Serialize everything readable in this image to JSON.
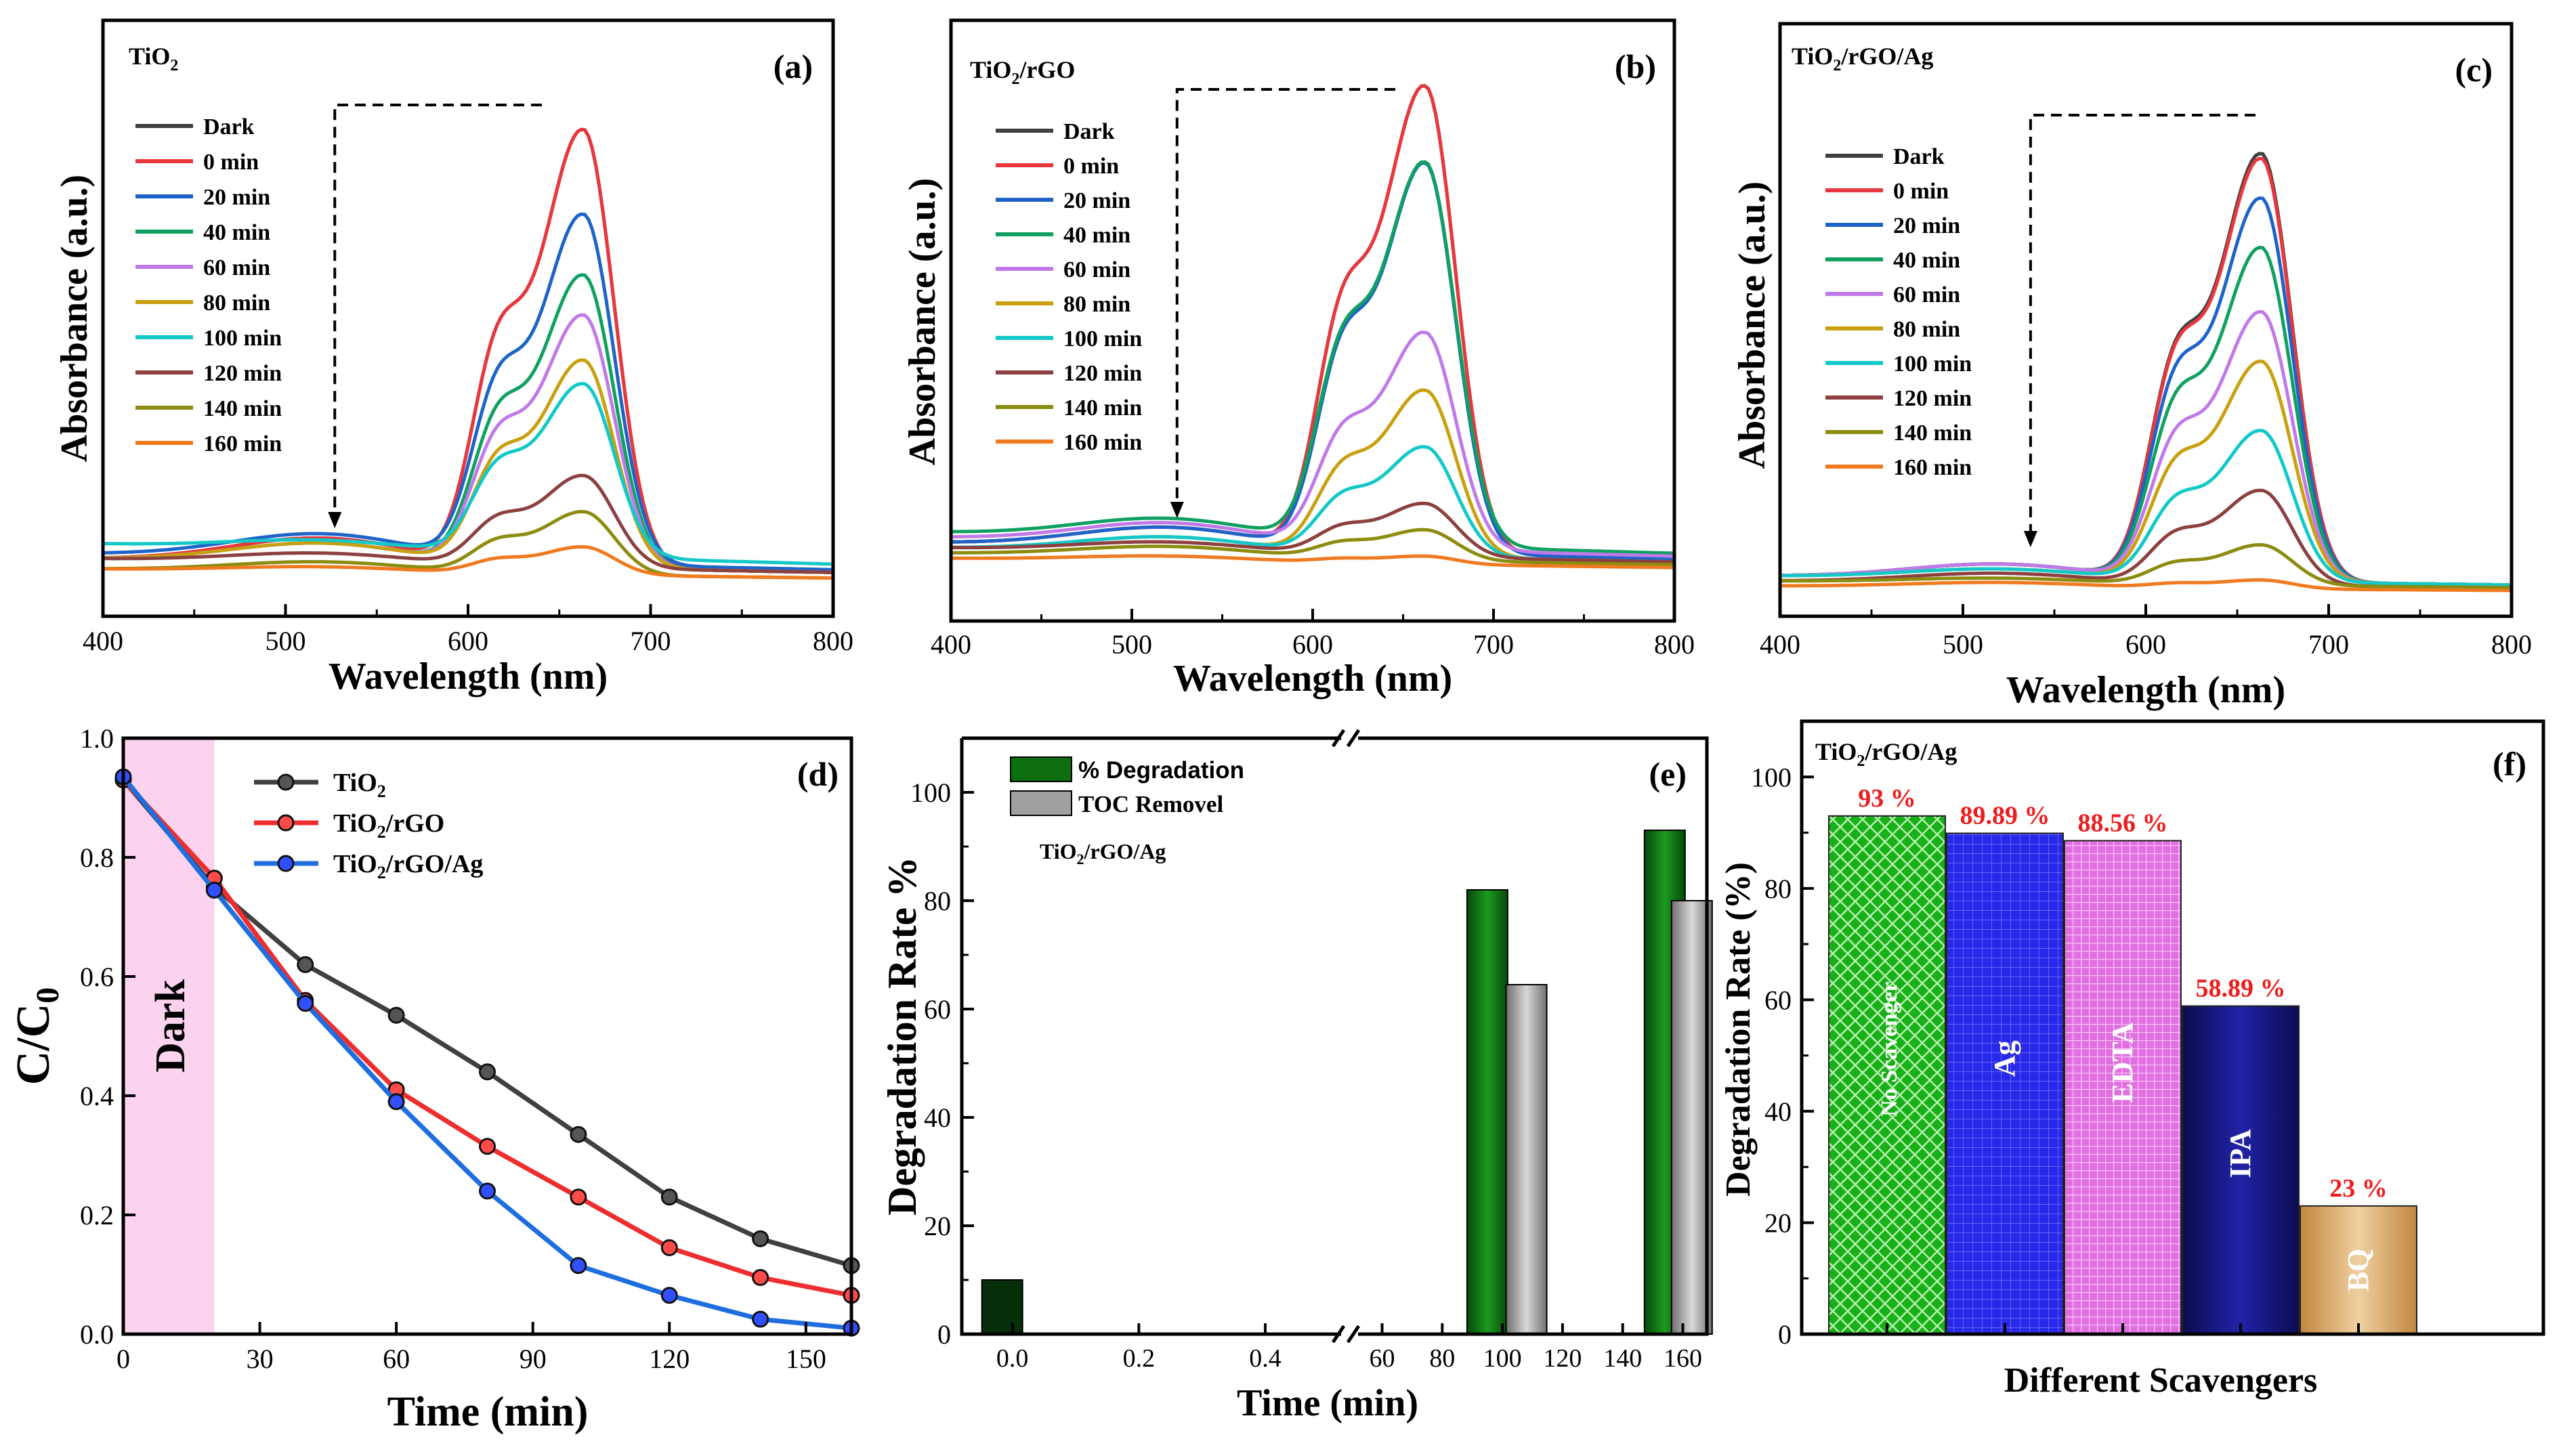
{
  "chart_data": [
    {
      "id": "a",
      "type": "line",
      "panel_label": "(a)",
      "title": "TiO2",
      "title_main": "TiO",
      "title_sub": "2",
      "title_rest": "",
      "xlabel": "Wavelength (nm)",
      "ylabel": "Absorbance (a.u.)",
      "xlim": [
        400,
        800
      ],
      "ylim": [
        0,
        1.0
      ],
      "xticks": [
        "400",
        "500",
        "600",
        "700",
        "800"
      ],
      "peak_x": 663,
      "shoulder_x": 615,
      "shoulder_ratio": 0.72,
      "arrow_x": 527,
      "series": [
        {
          "name": "Dark",
          "color": "#404040",
          "peak": 0.91,
          "base": 0.06,
          "hump": 0.05
        },
        {
          "name": "0 min",
          "color": "#e8373e",
          "peak": 0.91,
          "base": 0.06,
          "hump": 0.05
        },
        {
          "name": "20 min",
          "color": "#1e64c8",
          "peak": 0.74,
          "base": 0.07,
          "hump": 0.05
        },
        {
          "name": "40 min",
          "color": "#10a060",
          "peak": 0.62,
          "base": 0.06,
          "hump": 0.04
        },
        {
          "name": "60 min",
          "color": "#c07ae8",
          "peak": 0.54,
          "base": 0.06,
          "hump": 0.04
        },
        {
          "name": "80 min",
          "color": "#c8a010",
          "peak": 0.45,
          "base": 0.06,
          "hump": 0.04
        },
        {
          "name": "100 min",
          "color": "#14c8c8",
          "peak": 0.4,
          "base": 0.09,
          "hump": 0.02
        },
        {
          "name": "120 min",
          "color": "#8c4040",
          "peak": 0.22,
          "base": 0.06,
          "hump": 0.02
        },
        {
          "name": "140 min",
          "color": "#8c8c10",
          "peak": 0.15,
          "base": 0.04,
          "hump": 0.02
        },
        {
          "name": "160 min",
          "color": "#f07a20",
          "peak": 0.08,
          "base": 0.04,
          "hump": 0.01
        }
      ]
    },
    {
      "id": "b",
      "type": "line",
      "panel_label": "(b)",
      "title": "TiO2/rGO",
      "title_main": "TiO",
      "title_sub": "2",
      "title_rest": "/rGO",
      "xlabel": "Wavelength (nm)",
      "ylabel": "Absorbance (a.u.)",
      "xlim": [
        400,
        800
      ],
      "ylim": [
        0,
        1.0
      ],
      "xticks": [
        "400",
        "500",
        "600",
        "700",
        "800"
      ],
      "peak_x": 662,
      "shoulder_x": 615,
      "shoulder_ratio": 0.72,
      "arrow_x": 525,
      "series": [
        {
          "name": "Dark",
          "color": "#404040",
          "peak": 0.95,
          "base": 0.07,
          "hump": 0.04
        },
        {
          "name": "0 min",
          "color": "#e8373e",
          "peak": 0.95,
          "base": 0.07,
          "hump": 0.04
        },
        {
          "name": "20 min",
          "color": "#1e64c8",
          "peak": 0.8,
          "base": 0.07,
          "hump": 0.04
        },
        {
          "name": "40 min",
          "color": "#10a060",
          "peak": 0.8,
          "base": 0.09,
          "hump": 0.04
        },
        {
          "name": "60 min",
          "color": "#c07ae8",
          "peak": 0.47,
          "base": 0.08,
          "hump": 0.04
        },
        {
          "name": "80 min",
          "color": "#c8a010",
          "peak": 0.36,
          "base": 0.06,
          "hump": 0.03
        },
        {
          "name": "100 min",
          "color": "#14c8c8",
          "peak": 0.25,
          "base": 0.06,
          "hump": 0.03
        },
        {
          "name": "120 min",
          "color": "#8c4040",
          "peak": 0.14,
          "base": 0.06,
          "hump": 0.02
        },
        {
          "name": "140 min",
          "color": "#8c8c10",
          "peak": 0.09,
          "base": 0.05,
          "hump": 0.02
        },
        {
          "name": "160 min",
          "color": "#f07a20",
          "peak": 0.04,
          "base": 0.04,
          "hump": 0.01
        }
      ]
    },
    {
      "id": "c",
      "type": "line",
      "panel_label": "(c)",
      "title": "TiO2/rGO/Ag",
      "title_main": "TiO",
      "title_sub": "2",
      "title_rest": "/rGO/Ag",
      "xlabel": "Wavelength (nm)",
      "ylabel": "Absorbance (a.u.)",
      "xlim": [
        400,
        800
      ],
      "ylim": [
        0,
        1.0
      ],
      "xticks": [
        "400",
        "500",
        "600",
        "700",
        "800"
      ],
      "peak_x": 663,
      "shoulder_x": 615,
      "shoulder_ratio": 0.74,
      "arrow_x": 537,
      "series": [
        {
          "name": "Dark",
          "color": "#404040",
          "peak": 0.89,
          "base": 0.04,
          "hump": 0.03
        },
        {
          "name": "0 min",
          "color": "#e8373e",
          "peak": 0.88,
          "base": 0.04,
          "hump": 0.03
        },
        {
          "name": "20 min",
          "color": "#1e64c8",
          "peak": 0.8,
          "base": 0.04,
          "hump": 0.03
        },
        {
          "name": "40 min",
          "color": "#10a060",
          "peak": 0.7,
          "base": 0.04,
          "hump": 0.03
        },
        {
          "name": "60 min",
          "color": "#c07ae8",
          "peak": 0.57,
          "base": 0.04,
          "hump": 0.03
        },
        {
          "name": "80 min",
          "color": "#c8a010",
          "peak": 0.47,
          "base": 0.04,
          "hump": 0.02
        },
        {
          "name": "100 min",
          "color": "#14c8c8",
          "peak": 0.33,
          "base": 0.04,
          "hump": 0.02
        },
        {
          "name": "120 min",
          "color": "#8c4040",
          "peak": 0.21,
          "base": 0.03,
          "hump": 0.02
        },
        {
          "name": "140 min",
          "color": "#8c8c10",
          "peak": 0.1,
          "base": 0.03,
          "hump": 0.01
        },
        {
          "name": "160 min",
          "color": "#f07a20",
          "peak": 0.03,
          "base": 0.02,
          "hump": 0.01
        }
      ]
    },
    {
      "id": "d",
      "type": "line",
      "panel_label": "(d)",
      "xlabel": "Time (min)",
      "ylabel": "C/C0",
      "ylabel_main": "C/C",
      "ylabel_sub": "0",
      "xlim": [
        0,
        160
      ],
      "ylim": [
        0,
        1.0
      ],
      "xticks": [
        "0",
        "30",
        "60",
        "90",
        "120",
        "150"
      ],
      "yticks": [
        "0.0",
        "0.2",
        "0.4",
        "0.6",
        "0.8",
        "1.0"
      ],
      "dark_region": [
        0,
        20
      ],
      "dark_label": "Dark",
      "dark_color": "#fbd3ee",
      "x": [
        0,
        20,
        40,
        60,
        80,
        100,
        120,
        140,
        160
      ],
      "series": [
        {
          "name": "TiO2",
          "name_main": "TiO",
          "name_sub": "2",
          "name_rest": "",
          "color": "#404040",
          "marker_fill": "#555555",
          "values": [
            0.93,
            0.75,
            0.62,
            0.535,
            0.44,
            0.335,
            0.23,
            0.16,
            0.115
          ]
        },
        {
          "name": "TiO2/rGO",
          "name_main": "TiO",
          "name_sub": "2",
          "name_rest": "/rGO",
          "color": "#ee2e2e",
          "marker_fill": "#ff4a4a",
          "values": [
            0.93,
            0.765,
            0.56,
            0.41,
            0.315,
            0.23,
            0.145,
            0.095,
            0.065
          ]
        },
        {
          "name": "TiO2/rGO/Ag",
          "name_main": "TiO",
          "name_sub": "2",
          "name_rest": "/rGO/Ag",
          "color": "#1e6ee0",
          "marker_fill": "#3050ff",
          "values": [
            0.935,
            0.745,
            0.555,
            0.39,
            0.24,
            0.115,
            0.065,
            0.025,
            0.01
          ]
        }
      ]
    },
    {
      "id": "e",
      "type": "bar",
      "panel_label": "(e)",
      "xlabel": "Time (min)",
      "ylabel": "Degradation Rate %",
      "ylim": [
        0,
        110
      ],
      "yticks": [
        "0",
        "20",
        "40",
        "60",
        "80",
        "100"
      ],
      "xticks_left": [
        "0.0",
        "0.2",
        "0.4"
      ],
      "xticks_right": [
        "60",
        "80",
        "100",
        "120",
        "140",
        "160"
      ],
      "legend": [
        "% Degradation",
        "TOC Removel"
      ],
      "annotation": "TiO2/rGO/Ag",
      "annotation_main": "TiO",
      "annotation_sub": "2",
      "annotation_rest": "/rGO/Ag",
      "colors": {
        "degradation": "#0d6e10",
        "toc": "#a0a0a0"
      },
      "series": [
        {
          "name": "% Degradation",
          "points": [
            {
              "x": 0.0,
              "value": 10
            },
            {
              "x": 95,
              "value": 82
            },
            {
              "x": 154,
              "value": 93
            }
          ]
        },
        {
          "name": "TOC Removel",
          "points": [
            {
              "x": 108,
              "value": 64.5
            },
            {
              "x": 163,
              "value": 80
            }
          ]
        }
      ]
    },
    {
      "id": "f",
      "type": "bar",
      "panel_label": "(f)",
      "title": "TiO2/rGO/Ag",
      "title_main": "TiO",
      "title_sub": "2",
      "title_rest": "/rGO/Ag",
      "xlabel": "Different Scavengers",
      "ylabel": "Degradation Rate (%)",
      "ylim": [
        0,
        110
      ],
      "yticks": [
        "0",
        "20",
        "40",
        "60",
        "80",
        "100"
      ],
      "categories": [
        "No Scavenger",
        "Ag",
        "EDTA",
        "IPA",
        "BQ"
      ],
      "values": [
        93,
        89.89,
        88.56,
        58.89,
        23
      ],
      "value_labels": [
        "93 %",
        "89.89 %",
        "88.56 %",
        "58.89 %",
        "23 %"
      ],
      "colors": [
        "#18b018",
        "#2828e8",
        "#e070e0",
        "#141478",
        "#d0a060"
      ],
      "label_color": "#ee1c1c"
    }
  ]
}
